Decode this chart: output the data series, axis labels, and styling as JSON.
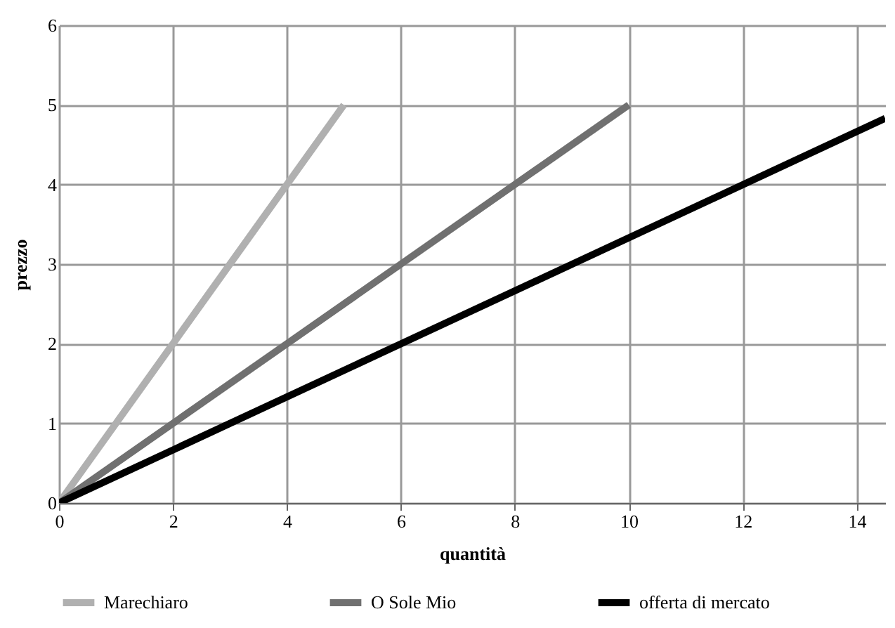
{
  "chart_data": {
    "type": "line",
    "xlabel": "quantità",
    "ylabel": "prezzo",
    "xlim": [
      0,
      14.5
    ],
    "xticks": [
      0,
      2,
      4,
      6,
      8,
      10,
      12,
      14
    ],
    "ylim": [
      0,
      6
    ],
    "yticks": [
      0,
      1,
      2,
      3,
      4,
      5,
      6
    ],
    "grid": true,
    "legend": "bottom",
    "line_style": "solid",
    "marker": "none",
    "series": [
      {
        "name": "Marechiaro",
        "color": "#b0b0b0",
        "x": [
          0,
          5
        ],
        "values": [
          0,
          5
        ]
      },
      {
        "name": "O Sole Mio",
        "color": "#707070",
        "x": [
          0,
          10
        ],
        "values": [
          0,
          5
        ]
      },
      {
        "name": "offerta di mercato",
        "color": "#000000",
        "x": [
          0,
          14.5
        ],
        "values": [
          0,
          4.83
        ]
      }
    ]
  }
}
